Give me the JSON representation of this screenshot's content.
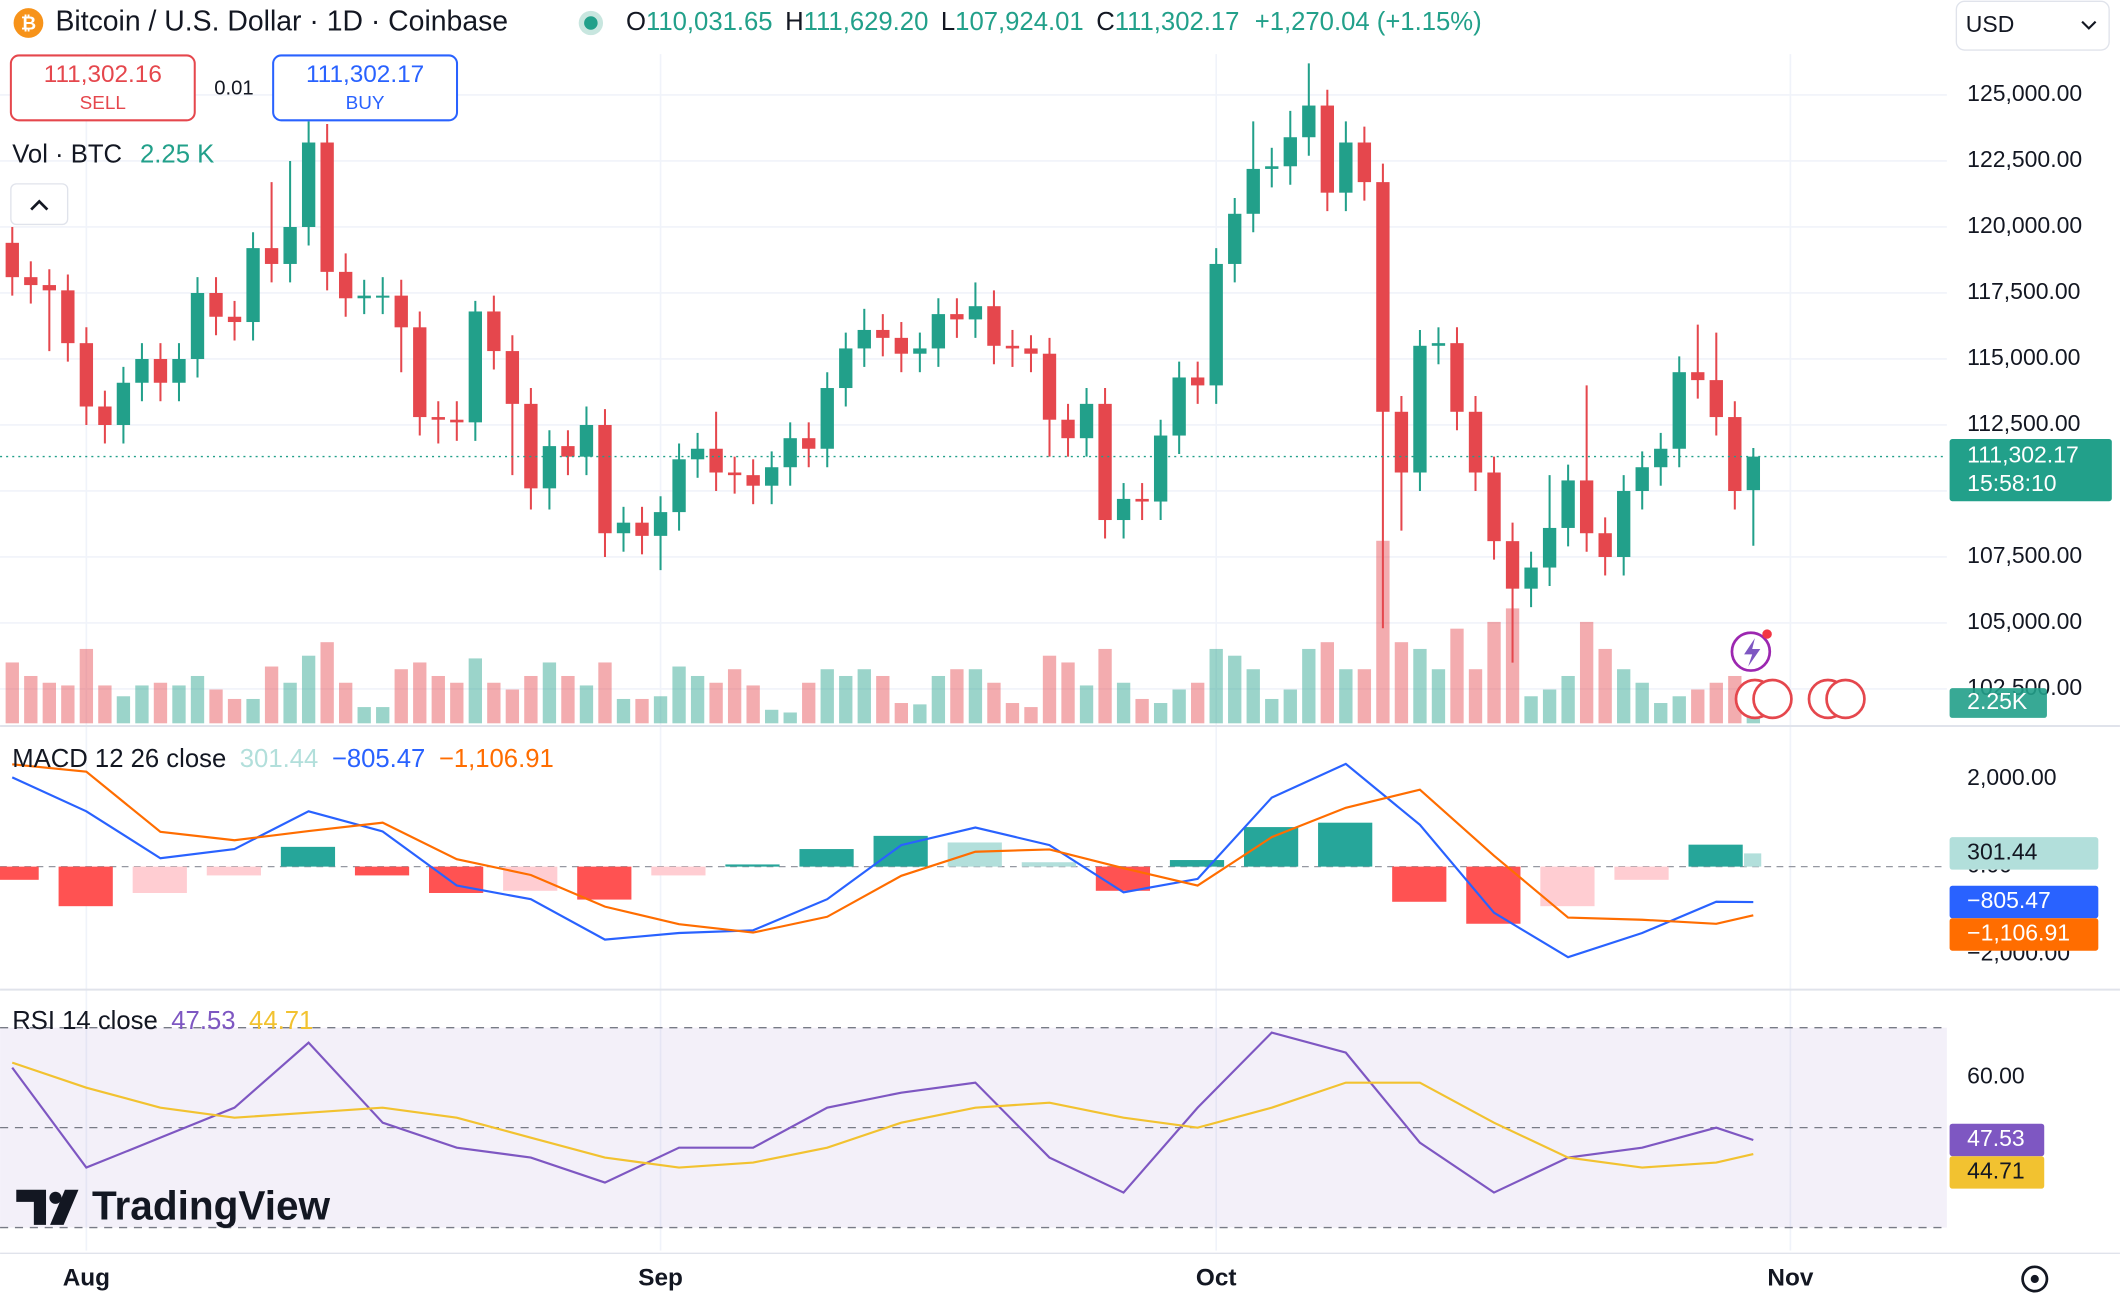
{
  "header": {
    "title": "Bitcoin / U.S. Dollar · 1D · Coinbase",
    "ohlc": [
      {
        "key": "O",
        "value": "110,031.65"
      },
      {
        "key": "H",
        "value": "111,629.20"
      },
      {
        "key": "L",
        "value": "107,924.01"
      },
      {
        "key": "C",
        "value": "111,302.17"
      }
    ],
    "change": "+1,270.04 (+1.15%)",
    "currency": "USD"
  },
  "trade": {
    "sell_price": "111,302.16",
    "sell": "SELL",
    "spread": "0.01",
    "buy_price": "111,302.17",
    "buy": "BUY"
  },
  "brand": "TradingView",
  "chart_data": [
    {
      "type": "candlestick",
      "up_color": "#22a08a",
      "down_color": "#e5474d",
      "open": [
        119400,
        118100,
        117800,
        117600,
        115600,
        113200,
        112500,
        114100,
        115000,
        114100,
        115000,
        117500,
        116600,
        116400,
        119200,
        118600,
        120000,
        123200,
        118300,
        117300,
        117400,
        117400,
        116200,
        112800,
        112700,
        112600,
        116800,
        115300,
        113300,
        110100,
        111700,
        111300,
        112500,
        108400,
        108800,
        108300,
        109200,
        111200,
        111600,
        110700,
        110600,
        110200,
        110900,
        112000,
        111600,
        113900,
        115400,
        116100,
        115800,
        115200,
        115400,
        116700,
        116500,
        117000,
        115500,
        115400,
        115200,
        112700,
        112000,
        113300,
        108900,
        109700,
        109600,
        112100,
        114300,
        114000,
        118600,
        120500,
        122200,
        122300,
        123400,
        124600,
        121300,
        123200,
        121700,
        113000,
        110700,
        115500,
        115600,
        113000,
        110700,
        108100,
        106300,
        107100,
        108600,
        110400,
        108400,
        107500,
        110000,
        110900,
        111600,
        114500,
        114200,
        112800,
        110031.65
      ],
      "high": [
        120000,
        118700,
        118400,
        118200,
        116200,
        113800,
        114700,
        115600,
        115600,
        115600,
        118100,
        118100,
        117200,
        119800,
        121700,
        122500,
        124000,
        123900,
        119000,
        118000,
        118100,
        118000,
        116800,
        113400,
        113400,
        117200,
        117400,
        115900,
        113900,
        112300,
        112300,
        113200,
        113100,
        109400,
        109400,
        109800,
        111800,
        112200,
        113000,
        111300,
        111200,
        111500,
        112600,
        112600,
        114500,
        116000,
        116900,
        116700,
        116400,
        116000,
        117300,
        117300,
        117900,
        117600,
        116100,
        115900,
        115800,
        113300,
        113900,
        113900,
        110300,
        110300,
        112700,
        114900,
        114900,
        119200,
        121100,
        124000,
        123000,
        124400,
        126200,
        125200,
        124000,
        123800,
        122400,
        113600,
        116100,
        116200,
        116200,
        113600,
        111300,
        108800,
        107700,
        110600,
        111000,
        114000,
        109000,
        110600,
        111500,
        112200,
        115100,
        116300,
        116000,
        113400,
        111629.2
      ],
      "low": [
        117400,
        117100,
        115300,
        114900,
        112500,
        111800,
        111800,
        113400,
        113400,
        113400,
        114300,
        115900,
        115700,
        115700,
        117900,
        117900,
        119300,
        117600,
        116600,
        116700,
        116700,
        114500,
        112100,
        111800,
        111900,
        111900,
        114600,
        110600,
        109300,
        109300,
        110600,
        110600,
        107500,
        107700,
        107600,
        107000,
        108500,
        110500,
        110000,
        109900,
        109500,
        109500,
        110200,
        110900,
        110900,
        113200,
        114700,
        115100,
        114500,
        114500,
        114700,
        115800,
        115800,
        114800,
        114700,
        114500,
        111300,
        111300,
        111300,
        108200,
        108200,
        108900,
        108900,
        111400,
        113300,
        113300,
        117900,
        119800,
        121500,
        121600,
        122700,
        120600,
        120600,
        121000,
        104800,
        108500,
        110000,
        114800,
        112300,
        110000,
        107400,
        103500,
        105600,
        106400,
        107900,
        107700,
        106800,
        106800,
        109300,
        110200,
        110900,
        113500,
        112100,
        109300,
        107924.01
      ],
      "close": [
        118100,
        117800,
        117600,
        115600,
        113200,
        112500,
        114100,
        115000,
        114100,
        115000,
        117500,
        116600,
        116400,
        119200,
        118600,
        120000,
        123200,
        118300,
        117300,
        117400,
        117400,
        116200,
        112800,
        112700,
        112600,
        116800,
        115300,
        113300,
        110100,
        111700,
        111300,
        112500,
        108400,
        108800,
        108300,
        109200,
        111200,
        111600,
        110700,
        110600,
        110200,
        110900,
        112000,
        111600,
        113900,
        115400,
        116100,
        115800,
        115200,
        115400,
        116700,
        116500,
        117000,
        115500,
        115400,
        115200,
        112700,
        112000,
        113300,
        108900,
        109700,
        109600,
        112100,
        114300,
        114000,
        118600,
        120500,
        122200,
        122300,
        123400,
        124600,
        121300,
        123200,
        121700,
        113000,
        110700,
        115500,
        115600,
        113000,
        110700,
        108100,
        106300,
        107100,
        108600,
        110400,
        108400,
        107500,
        110000,
        110900,
        111600,
        114500,
        114200,
        112800,
        110000,
        111302.17
      ],
      "xlim": [
        -0.66,
        104.45
      ],
      "xticks": [
        {
          "value": 4,
          "label": "Aug"
        },
        {
          "value": 35,
          "label": "Sep"
        },
        {
          "value": 65,
          "label": "Oct"
        },
        {
          "value": 96,
          "label": "Nov"
        }
      ],
      "ylim": [
        101200,
        126550
      ],
      "yticks": [
        {
          "value": 125000,
          "label": "125,000.00"
        },
        {
          "value": 122500,
          "label": "122,500.00"
        },
        {
          "value": 120000,
          "label": "120,000.00"
        },
        {
          "value": 117500,
          "label": "117,500.00"
        },
        {
          "value": 115000,
          "label": "115,000.00"
        },
        {
          "value": 112500,
          "label": "112,500.00"
        },
        {
          "value": 110000,
          "label": "110,000.00"
        },
        {
          "value": 107500,
          "label": "107,500.00"
        },
        {
          "value": 105000,
          "label": "105,000.00"
        },
        {
          "value": 102500,
          "label": "102,500.00"
        }
      ],
      "grid": true,
      "last_price_label": "111,302.17",
      "countdown": "15:58:10",
      "volume": {
        "name": "Vol · BTC",
        "legend_label": "2.25 K",
        "badge_label": "2.25K",
        "vlim": [
          0,
          72000
        ],
        "values": [
          6750,
          5250,
          4500,
          4200,
          8250,
          4200,
          3000,
          4200,
          4500,
          4200,
          5250,
          3750,
          2700,
          2700,
          6300,
          4500,
          7500,
          9000,
          4500,
          1800,
          1800,
          6000,
          6750,
          5250,
          4500,
          7200,
          4500,
          3750,
          5250,
          6750,
          5250,
          4200,
          6750,
          2700,
          2700,
          3000,
          6300,
          5250,
          4500,
          6000,
          4200,
          1500,
          1200,
          4500,
          6000,
          5250,
          6000,
          5250,
          2250,
          2100,
          5250,
          6000,
          6000,
          4500,
          2250,
          1800,
          7500,
          6750,
          4200,
          8250,
          4500,
          2700,
          2250,
          3750,
          4500,
          8250,
          7500,
          6000,
          2700,
          3750,
          8250,
          9000,
          6000,
          6000,
          20250,
          9000,
          8250,
          6000,
          10500,
          6000,
          11250,
          12750,
          3000,
          3750,
          5250,
          11250,
          8250,
          6000,
          4500,
          2250,
          3000,
          3750,
          4500,
          5250,
          2250
        ]
      }
    },
    {
      "type": "macd",
      "title": "MACD 12 26 close",
      "x": [
        0,
        4,
        8,
        12,
        16,
        20,
        24,
        28,
        32,
        36,
        40,
        44,
        48,
        52,
        56,
        60,
        64,
        68,
        72,
        76,
        80,
        84,
        88,
        92,
        94
      ],
      "ylim": [
        -2738,
        3108
      ],
      "yticks": [
        {
          "value": 2000,
          "label": "2,000.00"
        },
        {
          "value": 0,
          "label": "0.00"
        },
        {
          "value": -2000,
          "label": "−2,000.00"
        }
      ],
      "series": [
        {
          "type": "bar",
          "color": "#26a69a",
          "faded_color": "#b2dfdb",
          "negative_color": "#ff5252",
          "negative_faded_color": "#ffcdd2",
          "label": "301.44",
          "values": [
            -300,
            -900,
            -600,
            -200,
            450,
            -200,
            -600,
            -550,
            -750,
            -200,
            50,
            400,
            700,
            550,
            100,
            -550,
            150,
            900,
            1000,
            -800,
            -1300,
            -900,
            -300,
            500,
            301.44
          ]
        },
        {
          "type": "line",
          "color": "#2962ff",
          "label": "−805.47",
          "values": [
            2030,
            1260,
            190,
            400,
            1260,
            800,
            -430,
            -740,
            -1660,
            -1510,
            -1450,
            -740,
            490,
            890,
            490,
            -585,
            -280,
            1570,
            2340,
            950,
            -1050,
            -2060,
            -1510,
            -800,
            -805.47
          ]
        },
        {
          "type": "line",
          "color": "#ff6d00",
          "label": "−1,106.91",
          "values": [
            2330,
            2160,
            790,
            600,
            810,
            1000,
            170,
            -190,
            -910,
            -1310,
            -1500,
            -1140,
            -210,
            340,
            390,
            -35,
            -430,
            670,
            1340,
            1750,
            250,
            -1160,
            -1210,
            -1300,
            -1106.91
          ]
        }
      ]
    },
    {
      "type": "rsi",
      "title": "RSI 14 close",
      "x": [
        0,
        4,
        8,
        12,
        16,
        20,
        24,
        28,
        32,
        36,
        40,
        44,
        48,
        52,
        56,
        60,
        64,
        68,
        72,
        76,
        80,
        84,
        88,
        92,
        94
      ],
      "ylim": [
        25.4,
        76.8
      ],
      "yticks": [
        {
          "value": 60,
          "label": "60.00"
        }
      ],
      "bands": [
        30,
        50,
        70
      ],
      "band_color": "#7e57c2",
      "series": [
        {
          "type": "line",
          "color": "#7e57c2",
          "label": "47.53",
          "values": [
            62,
            42,
            48,
            54,
            67,
            51,
            46,
            44,
            39,
            46,
            46,
            54,
            57,
            59,
            44,
            37,
            54,
            69,
            65,
            47,
            37,
            44,
            46,
            50,
            47.53
          ]
        },
        {
          "type": "line",
          "color": "#f2c230",
          "label": "44.71",
          "values": [
            63,
            58,
            54,
            52,
            53,
            54,
            52,
            48,
            44,
            42,
            43,
            46,
            51,
            54,
            55,
            52,
            50,
            54,
            59,
            59,
            51,
            44,
            42,
            43,
            44.71
          ]
        }
      ]
    }
  ]
}
